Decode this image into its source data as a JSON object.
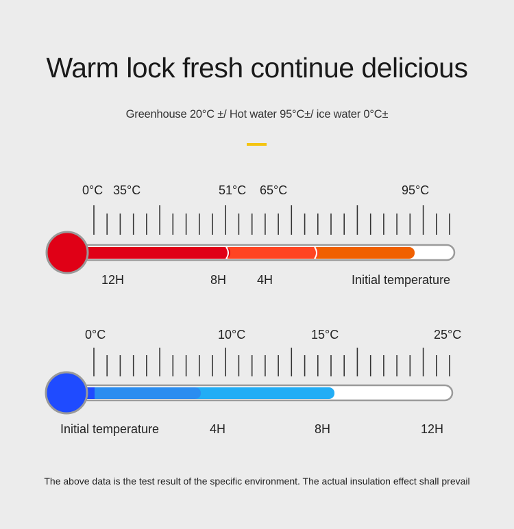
{
  "title": "Warm lock fresh continue delicious",
  "subtitle": "Greenhouse 20°C ±/ Hot water 95°C±/ ice water 0°C±",
  "accent_color": "#f4c412",
  "hot_thermometer": {
    "temps": [
      "0°C",
      "35°C",
      "51°C",
      "65°C",
      "95°C"
    ],
    "times": [
      "12H",
      "8H",
      "4H",
      "Initial temperature"
    ],
    "bulb_color": "#e00016",
    "segment_colors": [
      "#e00016",
      "#ff4422",
      "#f06000"
    ]
  },
  "cold_thermometer": {
    "temps": [
      "0°C",
      "10°C",
      "15°C",
      "25°C"
    ],
    "times": [
      "Initial temperature",
      "4H",
      "8H",
      "12H"
    ],
    "bulb_color": "#1f4bff",
    "segment_colors": [
      "#1f4bff",
      "#2b8df0",
      "#22adf5"
    ]
  },
  "footer": "The above data is the test result of the specific environment. The actual insulation effect shall prevail"
}
